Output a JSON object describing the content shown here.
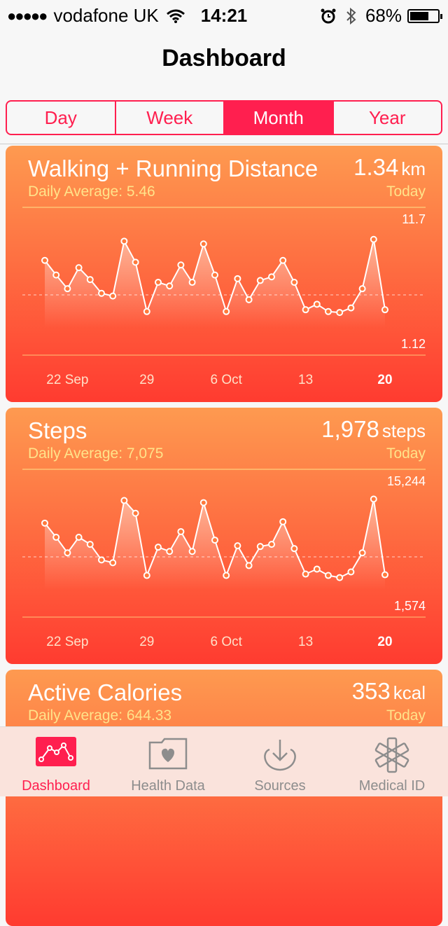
{
  "status": {
    "carrier": "vodafone UK",
    "time": "14:21",
    "battery": "68%",
    "battery_level": 0.68
  },
  "header": {
    "title": "Dashboard"
  },
  "segments": [
    {
      "label": "Day",
      "active": false
    },
    {
      "label": "Week",
      "active": false
    },
    {
      "label": "Month",
      "active": true
    },
    {
      "label": "Year",
      "active": false
    }
  ],
  "cards": [
    {
      "title": "Walking + Running Distance",
      "value": "1.34",
      "unit": "km",
      "avg": "Daily Average: 5.46",
      "today": "Today",
      "max_label": "11.7",
      "min_label": "1.12",
      "x_labels": [
        "22 Sep",
        "29",
        "6 Oct",
        "13",
        "20"
      ],
      "chart_data": {
        "type": "line",
        "x": [
          "20 Sep",
          "21 Sep",
          "22 Sep",
          "23 Sep",
          "24 Sep",
          "25 Sep",
          "26 Sep",
          "27 Sep",
          "28 Sep",
          "29 Sep",
          "30 Sep",
          "1 Oct",
          "2 Oct",
          "3 Oct",
          "4 Oct",
          "5 Oct",
          "6 Oct",
          "7 Oct",
          "8 Oct",
          "9 Oct",
          "10 Oct",
          "11 Oct",
          "12 Oct",
          "13 Oct",
          "14 Oct",
          "15 Oct",
          "16 Oct",
          "17 Oct",
          "18 Oct",
          "19 Oct",
          "20 Oct"
        ],
        "values": [
          8.5,
          6.9,
          5.4,
          7.7,
          6.4,
          4.9,
          4.6,
          10.6,
          8.3,
          2.9,
          6.1,
          5.7,
          8.0,
          6.1,
          10.3,
          6.9,
          2.9,
          6.5,
          4.2,
          6.3,
          6.7,
          8.5,
          6.1,
          3.1,
          3.7,
          2.9,
          2.8,
          3.3,
          5.4,
          10.8,
          3.1
        ],
        "ylim": [
          1.12,
          11.7
        ]
      }
    },
    {
      "title": "Steps",
      "value": "1,978",
      "unit": "steps",
      "avg": "Daily Average: 7,075",
      "today": "Today",
      "max_label": "15,244",
      "min_label": "1,574",
      "x_labels": [
        "22 Sep",
        "29",
        "6 Oct",
        "13",
        "20"
      ],
      "chart_data": {
        "type": "line",
        "x": [
          "20 Sep",
          "21 Sep",
          "22 Sep",
          "23 Sep",
          "24 Sep",
          "25 Sep",
          "26 Sep",
          "27 Sep",
          "28 Sep",
          "29 Sep",
          "30 Sep",
          "1 Oct",
          "2 Oct",
          "3 Oct",
          "4 Oct",
          "5 Oct",
          "6 Oct",
          "7 Oct",
          "8 Oct",
          "9 Oct",
          "10 Oct",
          "11 Oct",
          "12 Oct",
          "13 Oct",
          "14 Oct",
          "15 Oct",
          "16 Oct",
          "17 Oct",
          "18 Oct",
          "19 Oct",
          "20 Oct"
        ],
        "values": [
          11000,
          9000,
          6800,
          9000,
          8000,
          5800,
          5400,
          14200,
          12400,
          3600,
          7600,
          7000,
          9800,
          7000,
          13900,
          8600,
          3600,
          7800,
          5000,
          7700,
          8000,
          11200,
          7400,
          3800,
          4500,
          3600,
          3300,
          4100,
          6800,
          14400,
          3700
        ],
        "ylim": [
          1574,
          15244
        ]
      }
    },
    {
      "title": "Active Calories",
      "value": "353",
      "unit": "kcal",
      "avg": "Daily Average: 644.33",
      "today": "Today"
    }
  ],
  "tabs": [
    {
      "label": "Dashboard",
      "icon": "dashboard-icon",
      "active": true
    },
    {
      "label": "Health Data",
      "icon": "health-data-icon",
      "active": false
    },
    {
      "label": "Sources",
      "icon": "sources-icon",
      "active": false
    },
    {
      "label": "Medical ID",
      "icon": "medical-id-icon",
      "active": false
    }
  ],
  "colors": {
    "accent": "#ff1f4f",
    "card_top": "#fe9a50",
    "card_bottom": "#ff3b30",
    "avg_text": "#ffe38a"
  }
}
